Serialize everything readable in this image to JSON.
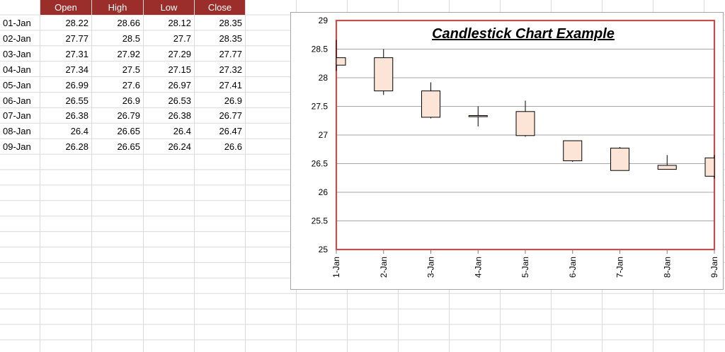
{
  "sheet": {
    "headers": [
      "Open",
      "High",
      "Low",
      "Close"
    ],
    "rows": [
      {
        "date": "01-Jan",
        "open": "28.22",
        "high": "28.66",
        "low": "28.12",
        "close": "28.35"
      },
      {
        "date": "02-Jan",
        "open": "27.77",
        "high": "28.5",
        "low": "27.7",
        "close": "28.35"
      },
      {
        "date": "03-Jan",
        "open": "27.31",
        "high": "27.92",
        "low": "27.29",
        "close": "27.77"
      },
      {
        "date": "04-Jan",
        "open": "27.34",
        "high": "27.5",
        "low": "27.15",
        "close": "27.32"
      },
      {
        "date": "05-Jan",
        "open": "26.99",
        "high": "27.6",
        "low": "26.97",
        "close": "27.41"
      },
      {
        "date": "06-Jan",
        "open": "26.55",
        "high": "26.9",
        "low": "26.53",
        "close": "26.9"
      },
      {
        "date": "07-Jan",
        "open": "26.38",
        "high": "26.79",
        "low": "26.38",
        "close": "26.77"
      },
      {
        "date": "08-Jan",
        "open": "26.4",
        "high": "26.65",
        "low": "26.4",
        "close": "26.47"
      },
      {
        "date": "09-Jan",
        "open": "26.28",
        "high": "26.65",
        "low": "26.24",
        "close": "26.6"
      }
    ],
    "colors": {
      "header_bg": "#9b2d2a",
      "header_text": "#ffffff",
      "gridline": "#dadada"
    }
  },
  "chart_data": {
    "type": "candlestick",
    "title": "Candlestick Chart Example",
    "categories": [
      "1-Jan",
      "2-Jan",
      "3-Jan",
      "4-Jan",
      "5-Jan",
      "6-Jan",
      "7-Jan",
      "8-Jan",
      "9-Jan"
    ],
    "open": [
      28.22,
      27.77,
      27.31,
      27.34,
      26.99,
      26.55,
      26.38,
      26.4,
      26.28
    ],
    "high": [
      28.66,
      28.5,
      27.92,
      27.5,
      27.6,
      26.9,
      26.79,
      26.65,
      26.65
    ],
    "low": [
      28.12,
      27.7,
      27.29,
      27.15,
      26.97,
      26.53,
      26.38,
      26.4,
      26.24
    ],
    "close": [
      28.35,
      28.35,
      27.77,
      27.32,
      27.41,
      26.9,
      26.77,
      26.47,
      26.6
    ],
    "ylim": [
      25,
      29
    ],
    "yticks": [
      "25",
      "25.5",
      "26",
      "26.5",
      "27",
      "27.5",
      "28",
      "28.5",
      "29"
    ],
    "grid": true,
    "legend": "none",
    "colors": {
      "candle_fill": "#fce4d6",
      "candle_stroke": "#000000",
      "plot_border": "#c0504d",
      "gridline": "#a6a6a6"
    }
  }
}
